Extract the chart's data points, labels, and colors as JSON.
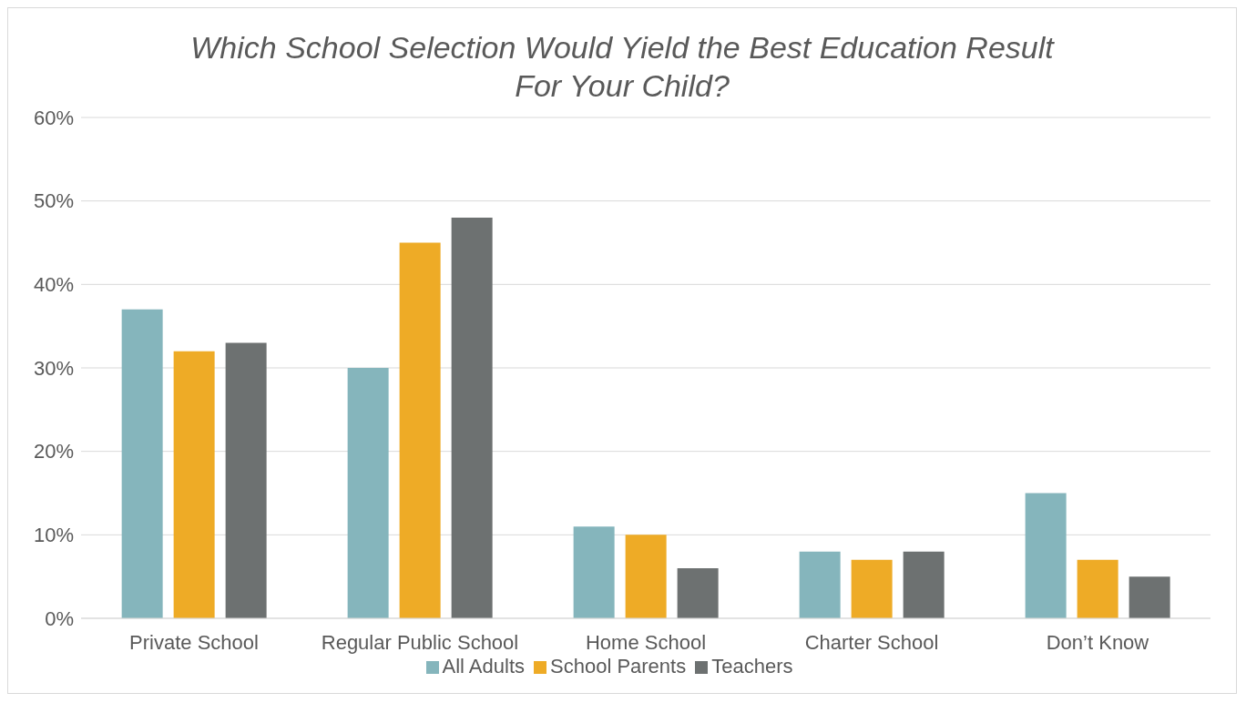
{
  "chart_data": {
    "type": "bar",
    "title": "Which School Selection Would Yield the Best Education Result For Your Child?",
    "categories": [
      "Private School",
      "Regular Public School",
      "Home School",
      "Charter School",
      "Don’t Know"
    ],
    "series": [
      {
        "name": "All Adults",
        "color": "#85b5bc",
        "values": [
          37,
          30,
          11,
          8,
          15
        ]
      },
      {
        "name": "School Parents",
        "color": "#eeab26",
        "values": [
          32,
          45,
          10,
          7,
          7
        ]
      },
      {
        "name": "Teachers",
        "color": "#6d7171",
        "values": [
          33,
          48,
          6,
          8,
          5
        ]
      }
    ],
    "ylim": [
      0,
      60
    ],
    "yticks": [
      {
        "value": 0,
        "label": "0%"
      },
      {
        "value": 10,
        "label": "10%"
      },
      {
        "value": 20,
        "label": "20%"
      },
      {
        "value": 30,
        "label": "30%"
      },
      {
        "value": 40,
        "label": "40%"
      },
      {
        "value": 50,
        "label": "50%"
      },
      {
        "value": 60,
        "label": "60%"
      }
    ],
    "grid": "y",
    "legend": "bottom"
  }
}
